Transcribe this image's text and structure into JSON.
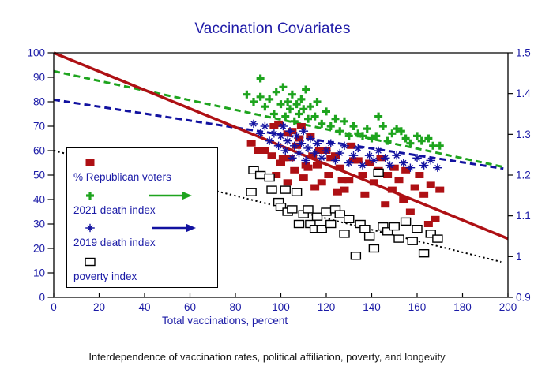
{
  "title": "Vaccination Covariates",
  "caption": "Interdependence of vaccination rates, political affiliation, poverty, and longevity",
  "colors": {
    "navy_text": "#1a1aa6",
    "republican_red": "#ae1014",
    "death2021_green": "#1ea41e",
    "death2019_blue": "#1212a0",
    "poverty_black": "#000000",
    "axis_black": "#000000",
    "background": "#ffffff"
  },
  "legend": {
    "items": [
      {
        "label": "% Republican voters",
        "marker": "square",
        "color": "#ae1014",
        "arrow": false
      },
      {
        "label": "2021 death index",
        "marker": "plus",
        "color": "#1ea41e",
        "arrow": true
      },
      {
        "label": "2019 death index",
        "marker": "asterisk",
        "color": "#1212a0",
        "arrow": true
      },
      {
        "label": "poverty index",
        "marker": "open-square",
        "color": "#000000",
        "arrow": false
      }
    ]
  },
  "chart_data": {
    "type": "scatter",
    "title": "Vaccination Covariates",
    "xlabel": "Total vaccinations, percent",
    "x_range": [
      0,
      200
    ],
    "x_ticks": [
      0,
      20,
      40,
      60,
      80,
      100,
      120,
      140,
      160,
      180,
      200
    ],
    "left_axis": {
      "range": [
        0,
        100
      ],
      "ticks": [
        0,
        10,
        20,
        30,
        40,
        50,
        60,
        70,
        80,
        90,
        100
      ]
    },
    "right_axis": {
      "range": [
        0.9,
        1.5
      ],
      "ticks": [
        0.9,
        1.0,
        1.1,
        1.2,
        1.3,
        1.4,
        1.5
      ],
      "tick_labels": [
        "0.9",
        "1",
        "1.1",
        "1.2",
        "1.3",
        "1.4",
        "1.5"
      ]
    },
    "grid": false,
    "legend_position": "inside-left",
    "series": [
      {
        "name": "% Republican voters",
        "marker": "square",
        "color": "#ae1014",
        "axis": "left",
        "trend": {
          "style": "solid",
          "width": 3.5,
          "x": [
            0,
            200
          ],
          "y": [
            100,
            24
          ]
        },
        "points": [
          [
            87,
            63
          ],
          [
            90,
            60
          ],
          [
            93,
            60
          ],
          [
            96,
            58
          ],
          [
            97,
            70
          ],
          [
            98,
            50
          ],
          [
            99,
            71
          ],
          [
            100,
            55
          ],
          [
            101,
            57
          ],
          [
            103,
            47
          ],
          [
            103,
            67
          ],
          [
            104,
            57
          ],
          [
            105,
            68
          ],
          [
            106,
            52
          ],
          [
            107,
            62
          ],
          [
            108,
            65
          ],
          [
            109,
            70
          ],
          [
            110,
            49
          ],
          [
            111,
            54
          ],
          [
            112,
            53
          ],
          [
            113,
            66
          ],
          [
            114,
            58
          ],
          [
            115,
            45
          ],
          [
            116,
            54
          ],
          [
            117,
            60
          ],
          [
            118,
            47
          ],
          [
            120,
            60
          ],
          [
            121,
            50
          ],
          [
            122,
            57
          ],
          [
            124,
            58
          ],
          [
            125,
            43
          ],
          [
            126,
            53
          ],
          [
            127,
            48
          ],
          [
            128,
            44
          ],
          [
            130,
            48
          ],
          [
            131,
            62
          ],
          [
            132,
            56
          ],
          [
            134,
            56
          ],
          [
            136,
            50
          ],
          [
            137,
            42
          ],
          [
            139,
            55
          ],
          [
            141,
            47
          ],
          [
            143,
            52
          ],
          [
            144,
            57
          ],
          [
            146,
            38
          ],
          [
            147,
            50
          ],
          [
            149,
            44
          ],
          [
            150,
            53
          ],
          [
            152,
            48
          ],
          [
            154,
            40
          ],
          [
            155,
            52
          ],
          [
            157,
            35
          ],
          [
            159,
            45
          ],
          [
            161,
            50
          ],
          [
            163,
            42
          ],
          [
            165,
            30
          ],
          [
            166,
            46
          ],
          [
            168,
            32
          ],
          [
            170,
            44
          ]
        ]
      },
      {
        "name": "2021 death index",
        "marker": "plus",
        "color": "#1ea41e",
        "axis": "right",
        "trend": {
          "style": "dashed",
          "width": 3,
          "x": [
            0,
            198
          ],
          "y": [
            1.455,
            1.22
          ]
        },
        "points": [
          [
            91,
            1.437
          ],
          [
            85,
            1.398
          ],
          [
            88,
            1.38
          ],
          [
            91,
            1.392
          ],
          [
            93,
            1.368
          ],
          [
            95,
            1.386
          ],
          [
            97,
            1.35
          ],
          [
            98,
            1.404
          ],
          [
            100,
            1.374
          ],
          [
            101,
            1.416
          ],
          [
            102,
            1.344
          ],
          [
            103,
            1.38
          ],
          [
            104,
            1.362
          ],
          [
            105,
            1.398
          ],
          [
            106,
            1.332
          ],
          [
            107,
            1.374
          ],
          [
            108,
            1.35
          ],
          [
            109,
            1.386
          ],
          [
            110,
            1.362
          ],
          [
            111,
            1.41
          ],
          [
            112,
            1.338
          ],
          [
            113,
            1.368
          ],
          [
            115,
            1.344
          ],
          [
            116,
            1.38
          ],
          [
            118,
            1.326
          ],
          [
            120,
            1.356
          ],
          [
            122,
            1.32
          ],
          [
            124,
            1.338
          ],
          [
            126,
            1.308
          ],
          [
            128,
            1.332
          ],
          [
            130,
            1.296
          ],
          [
            132,
            1.32
          ],
          [
            134,
            1.302
          ],
          [
            136,
            1.296
          ],
          [
            138,
            1.314
          ],
          [
            140,
            1.29
          ],
          [
            142,
            1.296
          ],
          [
            143,
            1.344
          ],
          [
            145,
            1.32
          ],
          [
            147,
            1.284
          ],
          [
            149,
            1.302
          ],
          [
            151,
            1.314
          ],
          [
            153,
            1.308
          ],
          [
            155,
            1.29
          ],
          [
            157,
            1.278
          ],
          [
            160,
            1.296
          ],
          [
            162,
            1.284
          ],
          [
            165,
            1.29
          ],
          [
            167,
            1.272
          ],
          [
            170,
            1.272
          ]
        ]
      },
      {
        "name": "2019 death index",
        "marker": "asterisk",
        "color": "#1212a0",
        "axis": "right",
        "trend": {
          "style": "dashed",
          "width": 3,
          "x": [
            0,
            198
          ],
          "y": [
            1.385,
            1.216
          ]
        },
        "points": [
          [
            88,
            1.326
          ],
          [
            91,
            1.302
          ],
          [
            93,
            1.32
          ],
          [
            95,
            1.284
          ],
          [
            97,
            1.302
          ],
          [
            99,
            1.272
          ],
          [
            100,
            1.296
          ],
          [
            101,
            1.32
          ],
          [
            102,
            1.26
          ],
          [
            103,
            1.284
          ],
          [
            104,
            1.308
          ],
          [
            105,
            1.242
          ],
          [
            106,
            1.272
          ],
          [
            107,
            1.296
          ],
          [
            108,
            1.254
          ],
          [
            109,
            1.278
          ],
          [
            110,
            1.308
          ],
          [
            111,
            1.236
          ],
          [
            112,
            1.266
          ],
          [
            113,
            1.29
          ],
          [
            115,
            1.254
          ],
          [
            116,
            1.278
          ],
          [
            118,
            1.242
          ],
          [
            120,
            1.26
          ],
          [
            122,
            1.278
          ],
          [
            124,
            1.236
          ],
          [
            126,
            1.254
          ],
          [
            128,
            1.272
          ],
          [
            130,
            1.23
          ],
          [
            132,
            1.248
          ],
          [
            134,
            1.266
          ],
          [
            136,
            1.224
          ],
          [
            139,
            1.248
          ],
          [
            141,
            1.236
          ],
          [
            143,
            1.26
          ],
          [
            146,
            1.242
          ],
          [
            148,
            1.224
          ],
          [
            151,
            1.248
          ],
          [
            154,
            1.23
          ],
          [
            157,
            1.218
          ],
          [
            160,
            1.242
          ],
          [
            163,
            1.224
          ],
          [
            166,
            1.236
          ],
          [
            169,
            1.218
          ]
        ]
      },
      {
        "name": "poverty index",
        "marker": "open-square",
        "color": "#000000",
        "axis": "left",
        "trend": {
          "style": "dotted",
          "width": 2,
          "x": [
            0,
            197
          ],
          "y": [
            60,
            14.5
          ]
        },
        "points": [
          [
            88,
            52
          ],
          [
            91,
            50
          ],
          [
            95,
            49
          ],
          [
            87,
            43
          ],
          [
            96,
            44
          ],
          [
            99,
            39
          ],
          [
            100,
            37
          ],
          [
            102,
            44
          ],
          [
            103,
            35
          ],
          [
            105,
            36
          ],
          [
            107,
            43
          ],
          [
            108,
            30
          ],
          [
            110,
            34
          ],
          [
            112,
            36
          ],
          [
            113,
            30
          ],
          [
            115,
            28
          ],
          [
            116,
            33
          ],
          [
            118,
            28
          ],
          [
            120,
            35
          ],
          [
            122,
            30
          ],
          [
            124,
            36
          ],
          [
            126,
            34
          ],
          [
            128,
            26
          ],
          [
            130,
            32
          ],
          [
            133,
            17
          ],
          [
            135,
            30
          ],
          [
            137,
            28
          ],
          [
            139,
            25
          ],
          [
            141,
            20
          ],
          [
            143,
            51
          ],
          [
            145,
            29
          ],
          [
            147,
            27
          ],
          [
            150,
            29
          ],
          [
            152,
            24
          ],
          [
            155,
            31
          ],
          [
            158,
            23
          ],
          [
            160,
            28
          ],
          [
            163,
            18
          ],
          [
            166,
            26
          ],
          [
            169,
            24
          ]
        ]
      }
    ]
  }
}
